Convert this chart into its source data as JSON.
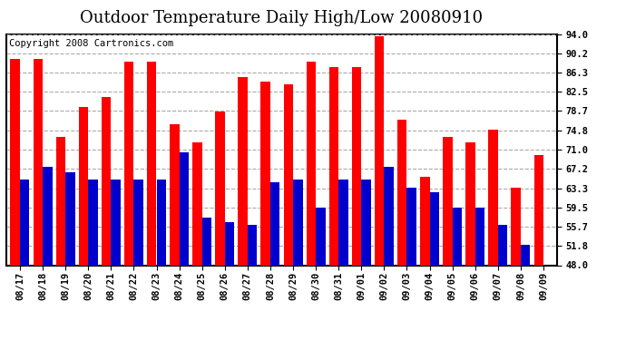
{
  "title": "Outdoor Temperature Daily High/Low 20080910",
  "copyright": "Copyright 2008 Cartronics.com",
  "dates": [
    "08/17",
    "08/18",
    "08/19",
    "08/20",
    "08/21",
    "08/22",
    "08/23",
    "08/24",
    "08/25",
    "08/26",
    "08/27",
    "08/28",
    "08/29",
    "08/30",
    "08/31",
    "09/01",
    "09/02",
    "09/03",
    "09/04",
    "09/05",
    "09/06",
    "09/07",
    "09/08",
    "09/09"
  ],
  "highs": [
    89.0,
    89.0,
    73.5,
    79.5,
    81.5,
    88.5,
    88.5,
    76.0,
    72.5,
    78.5,
    85.5,
    84.5,
    84.0,
    88.5,
    87.5,
    87.5,
    93.5,
    77.0,
    65.5,
    73.5,
    72.5,
    75.0,
    63.5,
    70.0
  ],
  "lows": [
    65.0,
    67.5,
    66.5,
    65.0,
    65.0,
    65.0,
    65.0,
    70.5,
    57.5,
    56.5,
    56.0,
    64.5,
    65.0,
    59.5,
    65.0,
    65.0,
    67.5,
    63.5,
    62.5,
    59.5,
    59.5,
    56.0,
    52.0,
    48.0
  ],
  "high_color": "#ff0000",
  "low_color": "#0000cc",
  "ylim": [
    48.0,
    94.0
  ],
  "yticks": [
    48.0,
    51.8,
    55.7,
    59.5,
    63.3,
    67.2,
    71.0,
    74.8,
    78.7,
    82.5,
    86.3,
    90.2,
    94.0
  ],
  "bar_width": 0.42,
  "background_color": "#ffffff",
  "plot_bg_color": "#ffffff",
  "grid_color": "#aaaaaa",
  "title_fontsize": 13,
  "tick_fontsize": 7.5,
  "copyright_fontsize": 7.5
}
